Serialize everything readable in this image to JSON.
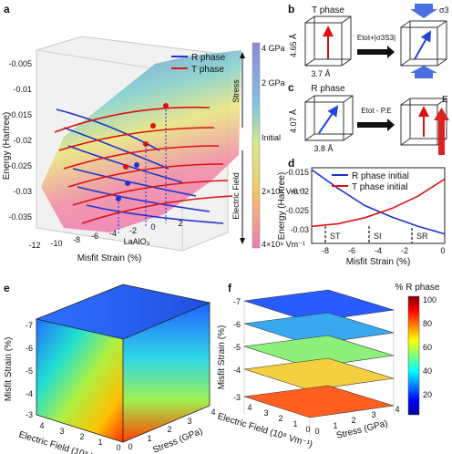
{
  "panels": {
    "a": "a",
    "b": "b",
    "c": "c",
    "d": "d",
    "e": "e",
    "f": "f"
  },
  "panel_a": {
    "ylabel": "Energy (Hartree)",
    "xlabel": "Misfit Strain (%)",
    "yticks": [
      "-0.005",
      "-0.01",
      "-0.015",
      "-0.02",
      "-0.025",
      "-0.03",
      "-0.035"
    ],
    "xticks": [
      "-12",
      "-10",
      "-8",
      "-6",
      "-4",
      "-2",
      "0",
      "2"
    ],
    "legend": {
      "r": "R phase",
      "t": "T phase"
    },
    "annotation": "LaAlO₃",
    "colorbar": {
      "stress_label": "Stress",
      "efield_label": "Electric Field",
      "ticks": [
        "4 GPa",
        "2 GPa",
        "Initial",
        "2×10⁸ Vm⁻¹",
        "4×10⁸ Vm⁻¹"
      ]
    },
    "colors": {
      "r": "#2233cc",
      "t": "#dd1111"
    }
  },
  "panel_b": {
    "title": "T phase",
    "dim_vertical": "4.65 Å",
    "dim_horizontal": "3.7 Å",
    "transform": "Etot+|σ3S3|",
    "sigma": "σ3"
  },
  "panel_c": {
    "title": "R phase",
    "dim_vertical": "4.07 Å",
    "dim_horizontal": "3.8 Å",
    "transform": "Etot - P.E",
    "efield": "E"
  },
  "panel_d": {
    "ylabel": "Energy (Hartree)",
    "xlabel": "Misfit Strain (%)",
    "yticks": [
      "-0.015",
      "-0.02",
      "-0.025",
      "-0.03"
    ],
    "xticks": [
      "-8",
      "-6",
      "-4",
      "-2",
      "0"
    ],
    "legend": {
      "r": "R phase initial",
      "t": "T phase initial"
    },
    "markers": [
      "ST",
      "SI",
      "SR"
    ]
  },
  "panel_e": {
    "zlabel": "Misfit Strain (%)",
    "xlabel": "Electric Field (10⁸ Vm⁻¹)",
    "ylabel": "Stress (GPa)",
    "zticks": [
      "-7",
      "-6",
      "-5",
      "-4",
      "-3"
    ],
    "eticks": [
      "4",
      "3",
      "2",
      "1",
      "0"
    ],
    "sticks": [
      "0",
      "1",
      "2",
      "3",
      "4"
    ]
  },
  "panel_f": {
    "zlabel": "Misfit Strain (%)",
    "xlabel": "Electric Field (10⁸ Vm⁻¹)",
    "ylabel": "Stress (GPa)",
    "zticks": [
      "-7",
      "-6",
      "-5",
      "-4",
      "-3"
    ],
    "eticks": [
      "4",
      "3",
      "2",
      "1",
      "0"
    ],
    "sticks": [
      "0",
      "1",
      "2",
      "3",
      "4"
    ],
    "colorbar_title": "% R phase",
    "colorbar_ticks": [
      "100",
      "80",
      "60",
      "40",
      "20"
    ]
  },
  "chart_data": [
    {
      "type": "line",
      "panel": "d",
      "ylabel": "Energy (Hartree)",
      "xlabel": "Misfit Strain (%)",
      "xlim": [
        -10,
        0
      ],
      "ylim": [
        -0.033,
        -0.013
      ],
      "series": [
        {
          "name": "R phase initial",
          "x": [
            -10,
            -8,
            -6,
            -4,
            -2,
            0
          ],
          "values": [
            -0.0135,
            -0.0185,
            -0.023,
            -0.026,
            -0.0285,
            -0.0305
          ]
        },
        {
          "name": "T phase initial",
          "x": [
            -10,
            -8,
            -6,
            -4,
            -2,
            0
          ],
          "values": [
            -0.0285,
            -0.0278,
            -0.0262,
            -0.0238,
            -0.0205,
            -0.016
          ]
        }
      ]
    }
  ]
}
